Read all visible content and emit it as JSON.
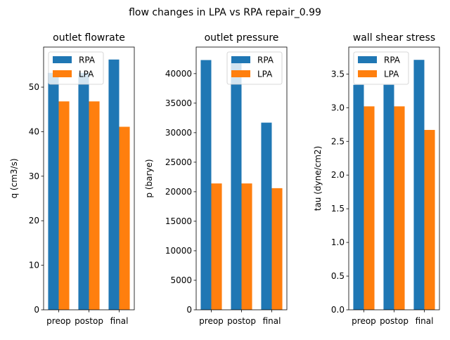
{
  "suptitle": "flow changes in LPA vs RPA repair_0.99",
  "chart_data": [
    {
      "type": "bar",
      "title": "outlet flowrate",
      "ylabel": "q (cm3/s)",
      "categories": [
        "preop",
        "postop",
        "final"
      ],
      "ylim": [
        0,
        59
      ],
      "yticks": [
        0,
        10,
        20,
        30,
        40,
        50
      ],
      "ytick_labels": [
        "0",
        "10",
        "20",
        "30",
        "40",
        "50"
      ],
      "series": [
        {
          "name": "RPA",
          "color": "#1f77b4",
          "values": [
            53.2,
            53.2,
            56.2
          ]
        },
        {
          "name": "LPA",
          "color": "#ff7f0e",
          "values": [
            46.8,
            46.8,
            41.1
          ]
        }
      ],
      "legend": "upper-left"
    },
    {
      "type": "bar",
      "title": "outlet pressure",
      "ylabel": "p (barye)",
      "categories": [
        "preop",
        "postop",
        "final"
      ],
      "ylim": [
        0,
        44500
      ],
      "yticks": [
        0,
        5000,
        10000,
        15000,
        20000,
        25000,
        30000,
        35000,
        40000
      ],
      "ytick_labels": [
        "0",
        "5000",
        "10000",
        "15000",
        "20000",
        "25000",
        "30000",
        "35000",
        "40000"
      ],
      "series": [
        {
          "name": "RPA",
          "color": "#1f77b4",
          "values": [
            42300,
            42300,
            31700
          ]
        },
        {
          "name": "LPA",
          "color": "#ff7f0e",
          "values": [
            21400,
            21400,
            20600
          ]
        }
      ],
      "legend": "upper-right"
    },
    {
      "type": "bar",
      "title": "wall shear stress",
      "ylabel": "tau (dyne/cm2)",
      "categories": [
        "preop",
        "postop",
        "final"
      ],
      "ylim": [
        0,
        3.9
      ],
      "yticks": [
        0.0,
        0.5,
        1.0,
        1.5,
        2.0,
        2.5,
        3.0,
        3.5
      ],
      "ytick_labels": [
        "0.0",
        "0.5",
        "1.0",
        "1.5",
        "2.0",
        "2.5",
        "3.0",
        "3.5"
      ],
      "series": [
        {
          "name": "RPA",
          "color": "#1f77b4",
          "values": [
            3.34,
            3.34,
            3.71
          ]
        },
        {
          "name": "LPA",
          "color": "#ff7f0e",
          "values": [
            3.02,
            3.02,
            2.67
          ]
        }
      ],
      "legend": "upper-left"
    }
  ]
}
